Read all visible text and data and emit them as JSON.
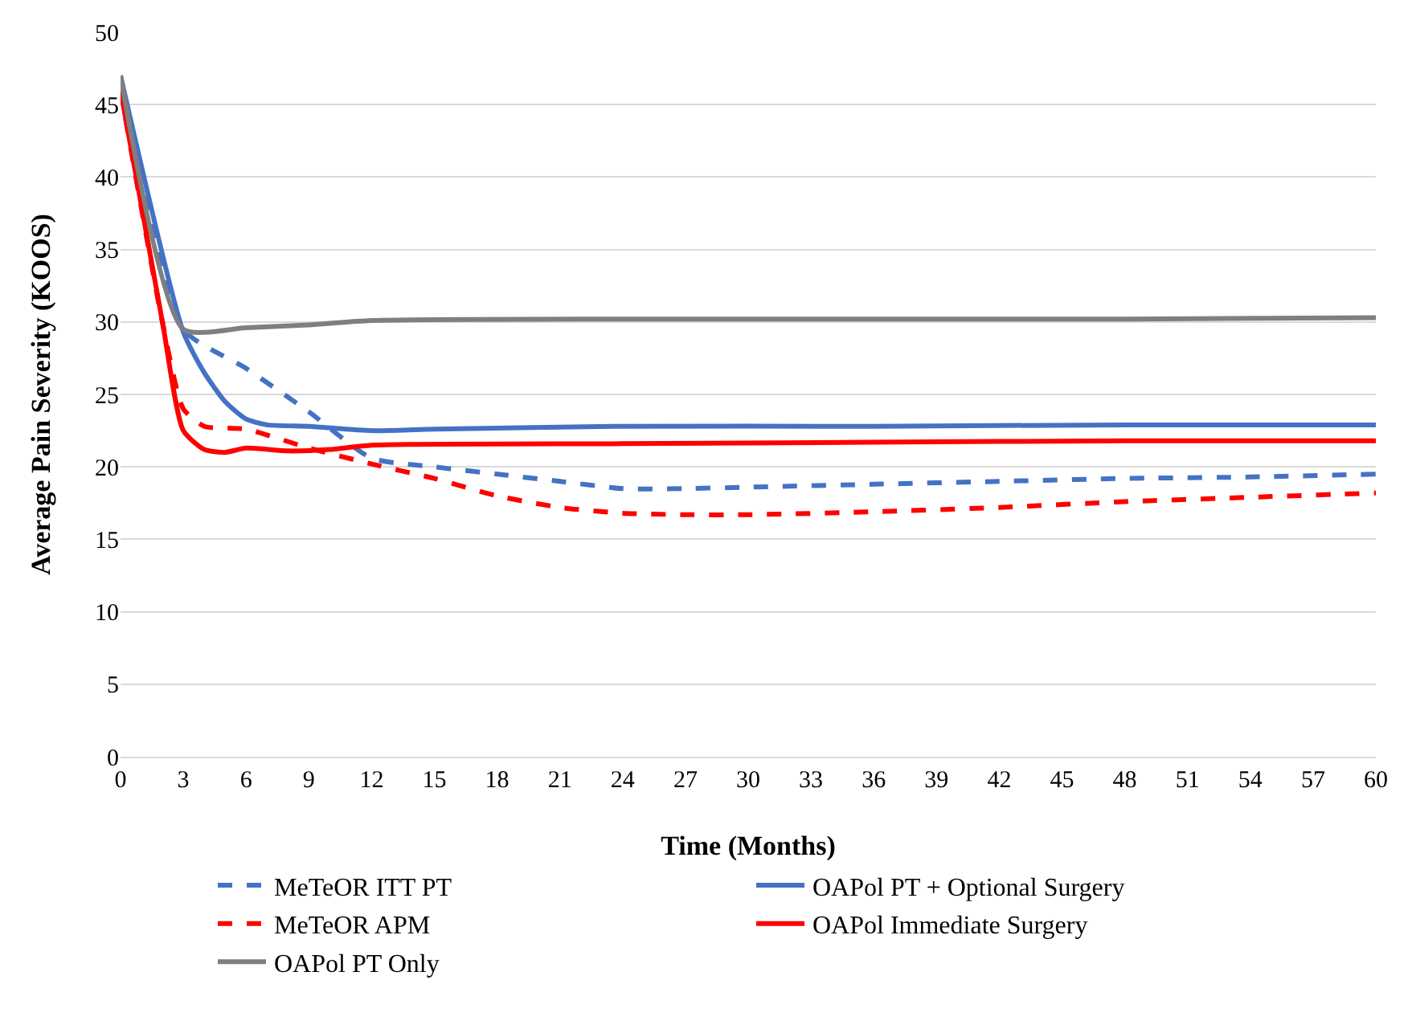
{
  "chart_data": {
    "type": "line",
    "xlabel": "Time (Months)",
    "ylabel": "Average Pain Severity (KOOS)",
    "xlim": [
      0,
      60
    ],
    "xticks": [
      0,
      3,
      6,
      9,
      12,
      15,
      18,
      21,
      24,
      27,
      30,
      33,
      36,
      39,
      42,
      45,
      48,
      51,
      54,
      57,
      60
    ],
    "ylim": [
      0,
      50
    ],
    "yticks": [
      0,
      5,
      10,
      15,
      20,
      25,
      30,
      35,
      40,
      45,
      50
    ],
    "grid": "y",
    "legend": "bottom",
    "series": [
      {
        "name": "MeTeOR ITT PT",
        "color": "#4472c4",
        "line_style": "dashed",
        "x": [
          0,
          3,
          6,
          9,
          12,
          15,
          18,
          21,
          24,
          27,
          30,
          36,
          42,
          48,
          54,
          60
        ],
        "values": [
          46.5,
          29.5,
          26.8,
          23.8,
          20.6,
          20,
          19.5,
          19,
          18.5,
          18.5,
          18.6,
          18.8,
          19,
          19.2,
          19.3,
          19.5
        ]
      },
      {
        "name": "OAPol PT + Optional Surgery",
        "color": "#4472c4",
        "line_style": "solid",
        "x": [
          0,
          3,
          4,
          5,
          6,
          7,
          9,
          12,
          15,
          24,
          36,
          48,
          60
        ],
        "values": [
          47,
          29.3,
          26.5,
          24.5,
          23.3,
          22.9,
          22.8,
          22.5,
          22.6,
          22.8,
          22.8,
          22.9,
          22.9
        ]
      },
      {
        "name": "MeTeOR APM",
        "color": "#ff0000",
        "line_style": "dashed",
        "x": [
          0,
          2,
          3,
          4,
          6,
          9,
          12,
          15,
          18,
          21,
          24,
          27,
          30,
          36,
          42,
          48,
          54,
          60
        ],
        "values": [
          46,
          30,
          24,
          22.8,
          22.6,
          21.3,
          20.2,
          19.2,
          18,
          17.2,
          16.8,
          16.7,
          16.7,
          16.9,
          17.2,
          17.6,
          17.9,
          18.2
        ]
      },
      {
        "name": "OAPol Immediate Surgery",
        "color": "#ff0000",
        "line_style": "solid",
        "x": [
          0,
          2,
          3,
          4,
          5,
          6,
          8,
          10,
          12,
          24,
          36,
          48,
          60
        ],
        "values": [
          46,
          30,
          22.5,
          21.2,
          21,
          21.3,
          21.1,
          21.2,
          21.5,
          21.6,
          21.7,
          21.8,
          21.8
        ]
      },
      {
        "name": "OAPol PT Only",
        "color": "#7f7f7f",
        "line_style": "solid",
        "x": [
          0,
          3,
          6,
          9,
          12,
          24,
          48,
          60
        ],
        "values": [
          47,
          29.5,
          29.6,
          29.8,
          30.1,
          30.2,
          30.2,
          30.3
        ]
      }
    ]
  }
}
